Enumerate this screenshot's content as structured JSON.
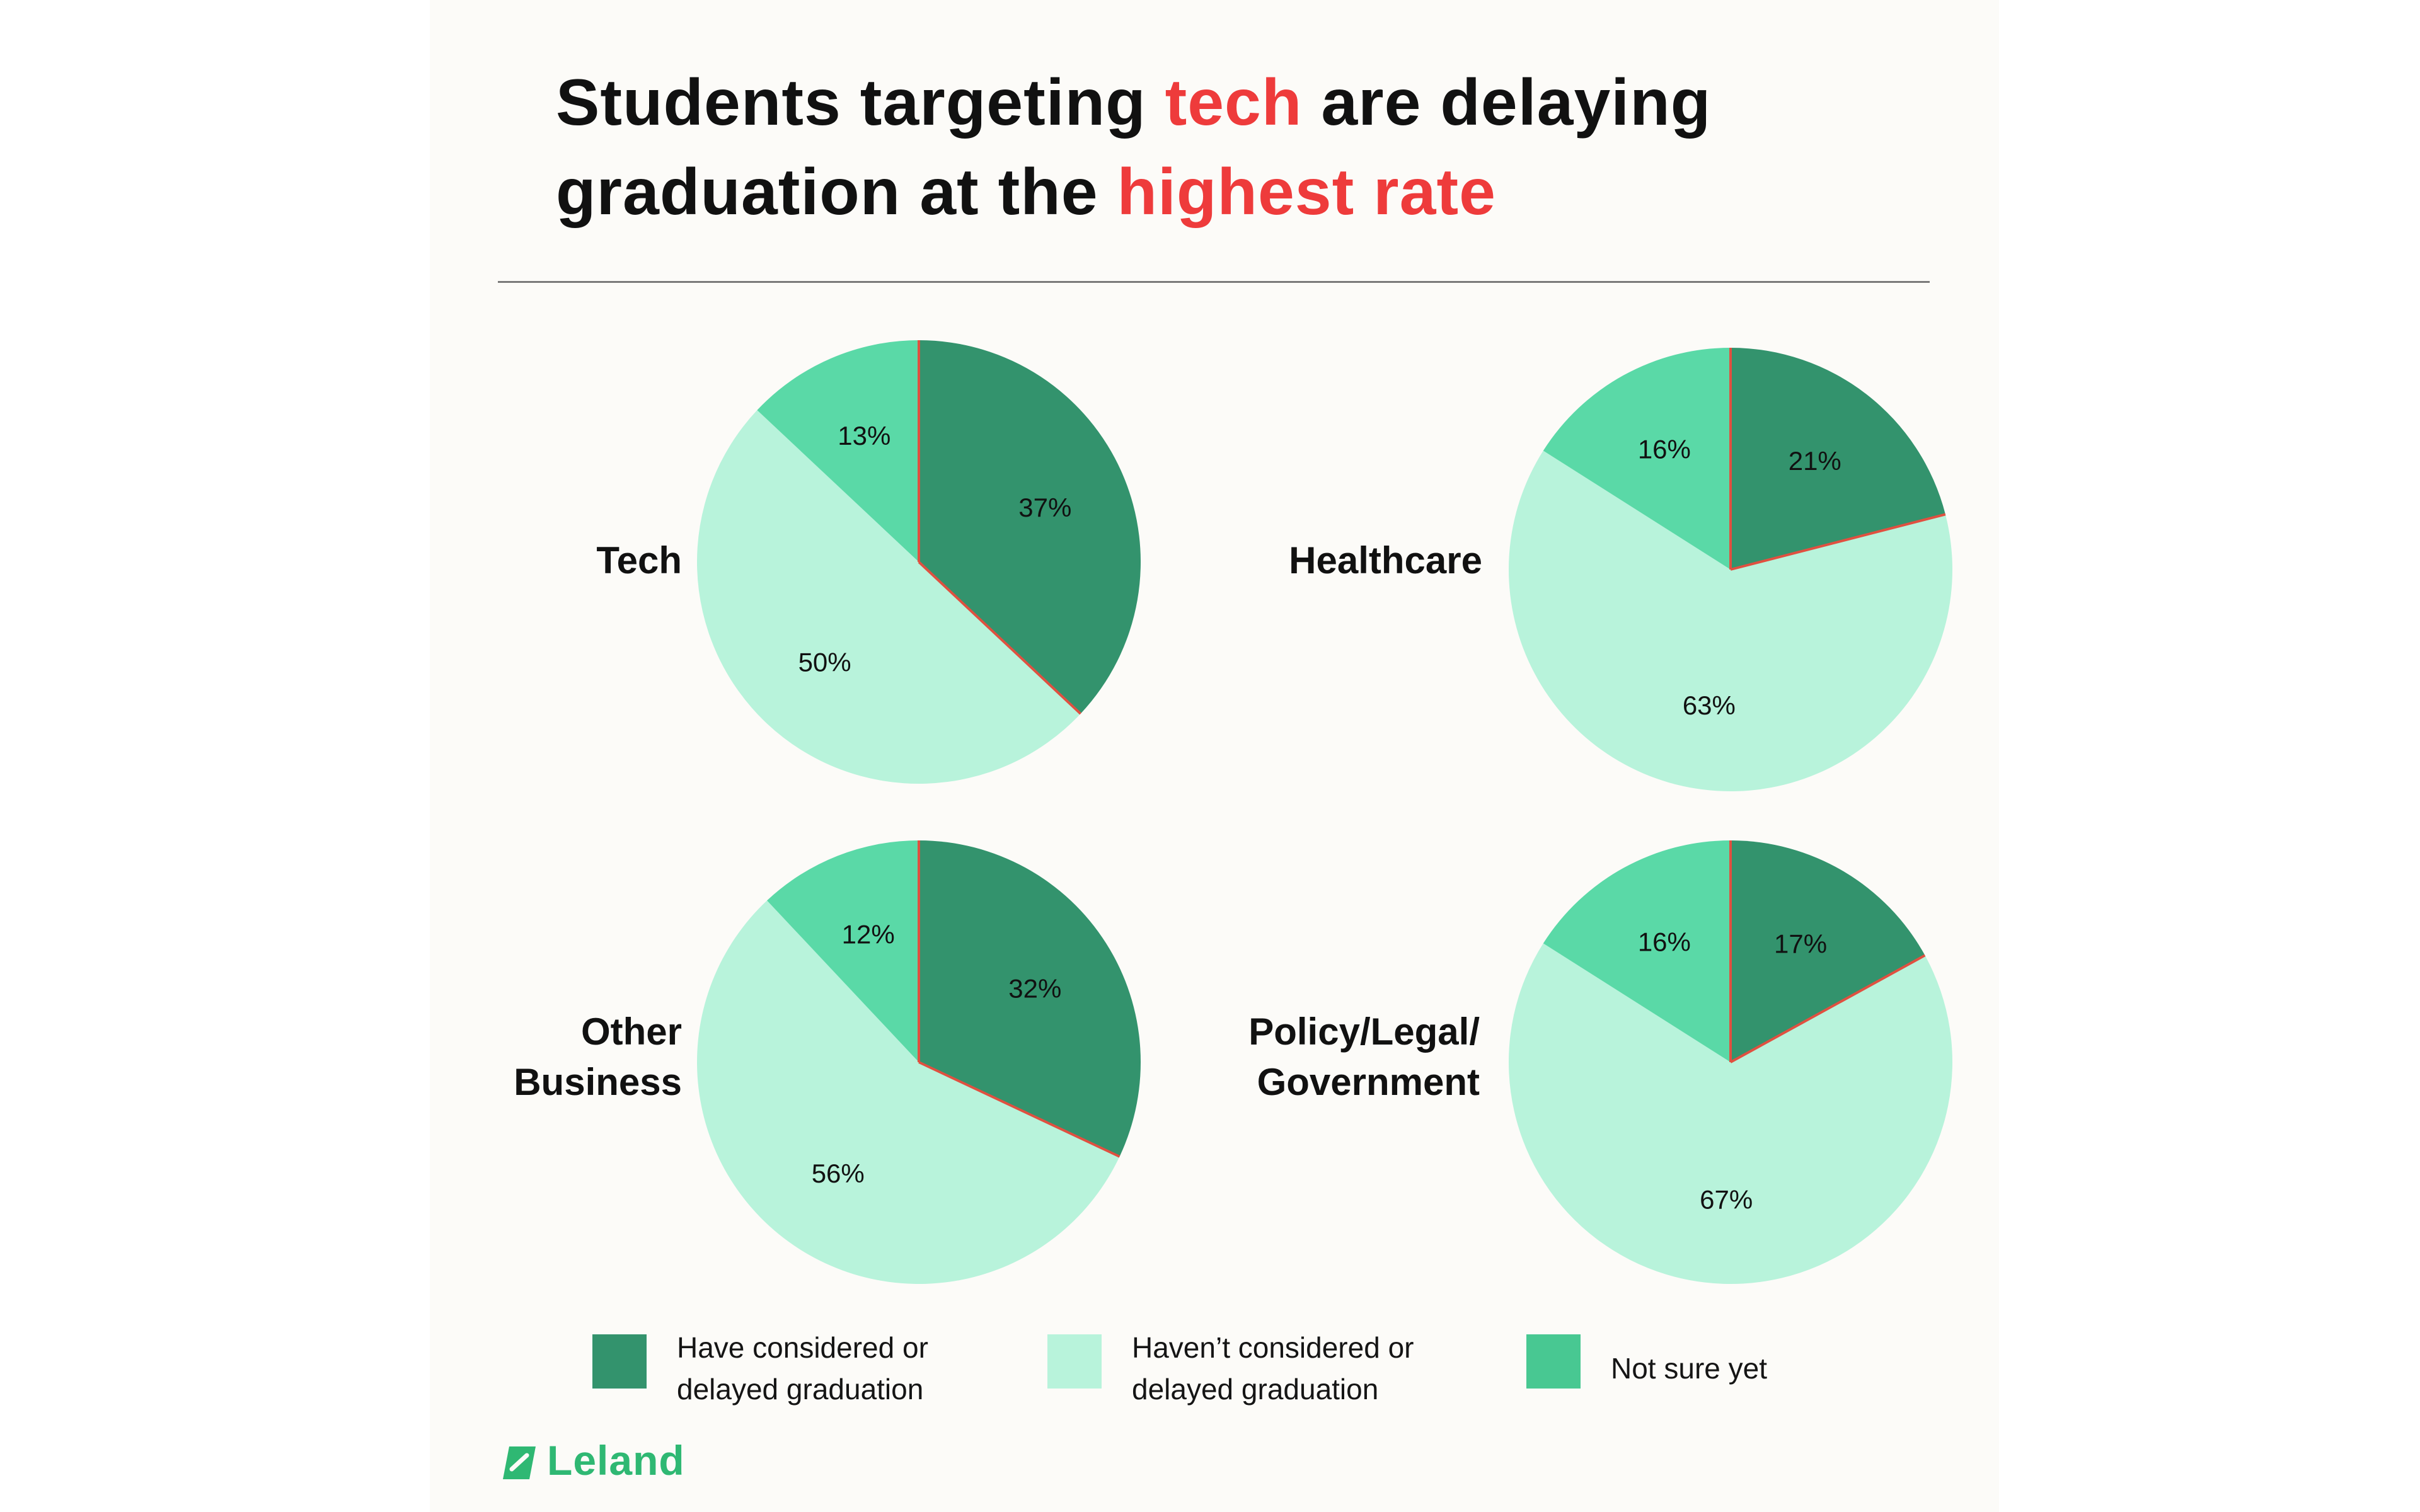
{
  "title": {
    "part1": "Students targeting ",
    "highlight1": "tech",
    "part2": " are delaying",
    "part3": "graduation at the ",
    "highlight2": "highest rate"
  },
  "colors": {
    "have_considered": "#33936d",
    "havent_considered": "#b8f3db",
    "not_sure": "#5ad9a7",
    "divider_red": "#e05040",
    "highlight": "#ee3b3b",
    "brand": "#2fb873"
  },
  "chart_data": [
    {
      "type": "pie",
      "category": "Tech",
      "slices": [
        {
          "label": "Have considered or delayed graduation",
          "value": 37,
          "text": "37%"
        },
        {
          "label": "Haven't considered or delayed graduation",
          "value": 50,
          "text": "50%"
        },
        {
          "label": "Not sure yet",
          "value": 13,
          "text": "13%"
        }
      ]
    },
    {
      "type": "pie",
      "category": "Healthcare",
      "slices": [
        {
          "label": "Have considered or delayed graduation",
          "value": 21,
          "text": "21%"
        },
        {
          "label": "Haven't considered or delayed graduation",
          "value": 63,
          "text": "63%"
        },
        {
          "label": "Not sure yet",
          "value": 16,
          "text": "16%"
        }
      ]
    },
    {
      "type": "pie",
      "category": "Other Business",
      "slices": [
        {
          "label": "Have considered or delayed graduation",
          "value": 32,
          "text": "32%"
        },
        {
          "label": "Haven't considered or delayed graduation",
          "value": 56,
          "text": "56%"
        },
        {
          "label": "Not sure yet",
          "value": 12,
          "text": "12%"
        }
      ]
    },
    {
      "type": "pie",
      "category": "Policy/Legal/ Government",
      "slices": [
        {
          "label": "Have considered or delayed graduation",
          "value": 17,
          "text": "17%"
        },
        {
          "label": "Haven't considered or delayed graduation",
          "value": 67,
          "text": "67%"
        },
        {
          "label": "Not sure yet",
          "value": 16,
          "text": "16%"
        }
      ]
    }
  ],
  "categories": {
    "tech": "Tech",
    "healthcare": "Healthcare",
    "other_line1": "Other",
    "other_line2": "Business",
    "policy_line1": "Policy/Legal/",
    "policy_line2": "Government"
  },
  "legend": {
    "have_line1": "Have considered or",
    "have_line2": "delayed graduation",
    "havent_line1": "Haven’t considered or",
    "havent_line2": "delayed graduation",
    "not_sure": "Not sure yet"
  },
  "brand": {
    "name": "Leland",
    "icon": "leland-logo-icon"
  }
}
